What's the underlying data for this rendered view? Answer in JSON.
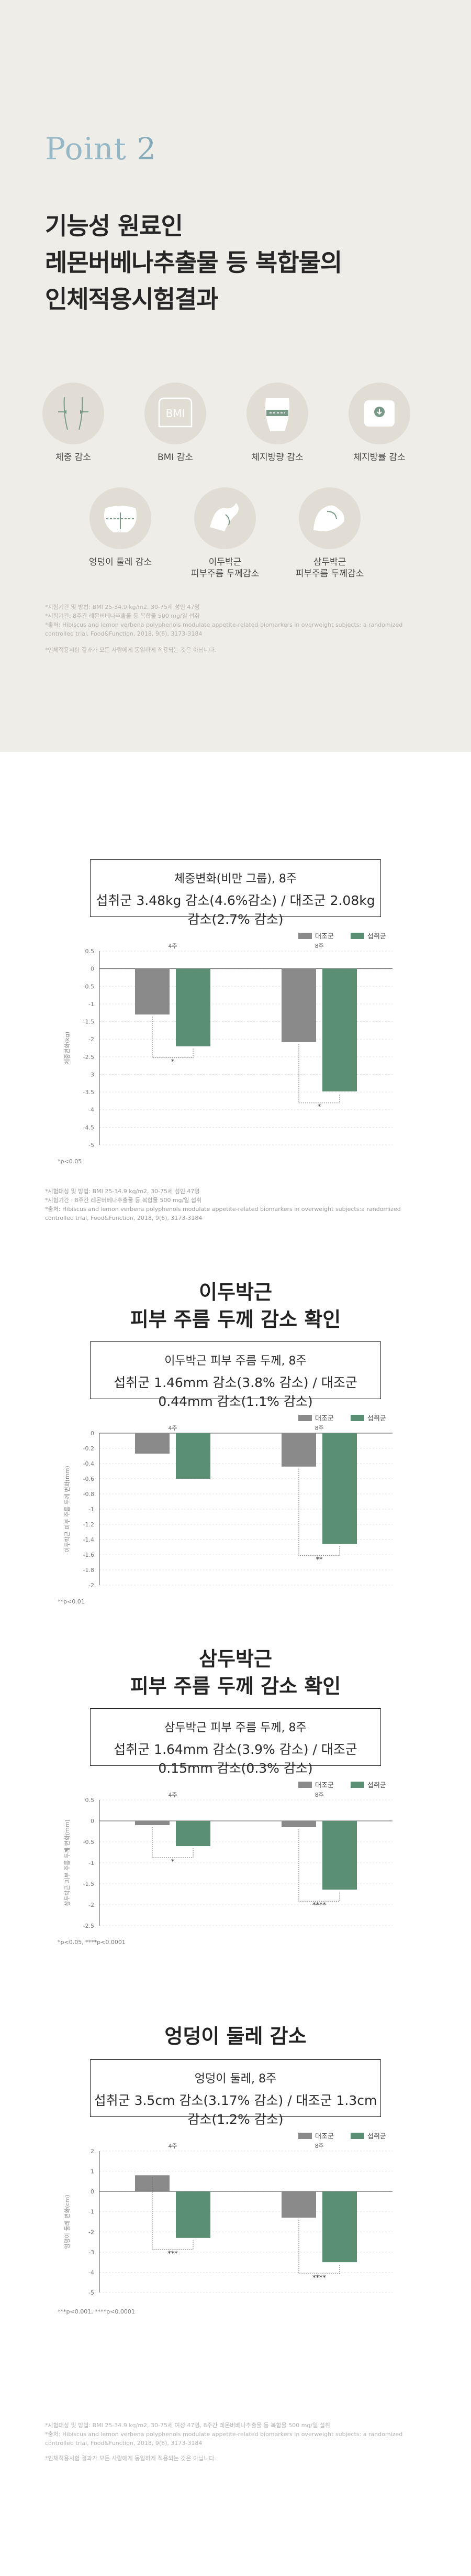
{
  "point": {
    "word": "Point",
    "num": "2"
  },
  "title_lines": [
    "기능성 원료인",
    "레몬버베나추출물 등 복합물의",
    "인체적용시험결과"
  ],
  "icons": [
    {
      "name": "weight-loss-icon",
      "label": "체중 감소"
    },
    {
      "name": "bmi-icon",
      "label": "BMI 감소"
    },
    {
      "name": "body-fat-icon",
      "label": "체지방량 감소"
    },
    {
      "name": "fat-mass-icon",
      "label": "체지방률 감소"
    },
    {
      "name": "hip-icon",
      "label": "엉덩이 둘레 감소"
    },
    {
      "name": "triceps-icon",
      "label": "이두박근\n피부주름 두께감소"
    },
    {
      "name": "biceps-icon",
      "label": "삼두박근\n피부주름 두께감소"
    }
  ],
  "footnotes": [
    "*시험기관 및 방법: BMI 25-34.9 kg/m2, 30-75세 성인 47명",
    "*시험기간: 8주간 레몬버베나추출물 등 복합물 500 mg/일 섭취",
    "*출처: Hibiscus and lemon verbena polyphenols modulate appetite-related biomarkers in overweight subjects: a randomized controlled trial, Food&Function, 2018, 9(6), 3173-3184",
    "*인체적용시험 결과가 모든 사람에게 동일하게 적용되는 것은 아닙니다."
  ],
  "chart1": {
    "heading": "체중변화(비만 그룹), 8주",
    "summary": "섭취군 3.48kg 감소(4.6%감소) / 대조군 2.08kg 감소(2.7% 감소)",
    "legend": [
      "대조군",
      "섭취군"
    ],
    "ylabel": "체중변화(kg)",
    "note": "*p<0.05"
  },
  "chart1_ref": [
    "*시험대상 및 방법: BMI 25-34.9 kg/m2, 30-75세 성인 47명",
    "*시험기간 : 8주간 레몬버베나추출물 등 복합물 500 mg/일 섭취",
    "*출처: Hibiscus and lemon verbena polyphenols modulate appetite-related biomarkers in overweight subjects:a randomized controlled trial, Food&Function, 2018, 9(6), 3173-3184"
  ],
  "chart2": {
    "title": [
      "이두박근",
      "피부 주름 두께 감소 확인"
    ],
    "heading": "이두박근 피부 주름 두께, 8주",
    "summary": "섭취군 1.46mm 감소(3.8% 감소) / 대조군 0.44mm 감소(1.1% 감소)",
    "legend": [
      "대조군",
      "섭취군"
    ],
    "ylabel": "이두박근 피부 주름 두께 변화(mm)",
    "note": "**p<0.01"
  },
  "chart3": {
    "title": [
      "삼두박근",
      "피부 주름 두께 감소 확인"
    ],
    "heading": "삼두박근 피부 주름 두께, 8주",
    "summary": "섭취군 1.64mm 감소(3.9% 감소) / 대조군 0.15mm 감소(0.3% 감소)",
    "legend": [
      "대조군",
      "섭취군"
    ],
    "ylabel": "삼두박근 피부 주름 두께 변화(mm)",
    "note": "*p<0.05, ****p<0.0001"
  },
  "chart4": {
    "title": [
      "엉덩이 둘레 감소"
    ],
    "heading": "엉덩이 둘레, 8주",
    "summary": "섭취군 3.5cm 감소(3.17% 감소) / 대조군 1.3cm 감소(1.2% 감소)",
    "legend": [
      "대조군",
      "섭취군"
    ],
    "ylabel": "엉덩이 둘레 변화(cm)",
    "note": "***p<0.001, ****p<0.0001"
  },
  "bottom_ref": [
    "*시험대상 및 방법: BMI 25-34.9 kg/m2, 30-75세 여성 47명, 8주간 레몬버베나추출물 등 복합물 500 mg/일 섭취",
    "*출처: Hibiscus and lemon verbena polyphenols modulate appetite-related biomarkers in overweight subjects: a randomized controlled trial, Food&Function, 2018, 9(6), 3173-3184",
    "*인체적용시험 결과가 모든 사람에게 동일하게 적용되는 것은 아닙니다."
  ],
  "colors": {
    "control": "#8a8a8a",
    "treatment": "#5b8f74",
    "top_bg": "#efede8",
    "point": "#96b8c6"
  },
  "chart_data": [
    {
      "type": "bar",
      "categories": [
        "4주",
        "8주"
      ],
      "series": [
        {
          "name": "대조군",
          "values": [
            -1.3,
            -2.08
          ]
        },
        {
          "name": "섭취군",
          "values": [
            -2.2,
            -3.48
          ]
        }
      ],
      "ylim": [
        -5,
        0.5
      ],
      "yticks": [
        "0.5",
        "0",
        "-0.5",
        "-1",
        "-1.5",
        "-2",
        "-2.5",
        "-3",
        "-3.5",
        "-4",
        "-4.5",
        "-5"
      ],
      "sig": [
        "*",
        "*"
      ]
    },
    {
      "type": "bar",
      "categories": [
        "4주",
        "8주"
      ],
      "series": [
        {
          "name": "대조군",
          "values": [
            -0.27,
            -0.44
          ]
        },
        {
          "name": "섭취군",
          "values": [
            -0.6,
            -1.46
          ]
        }
      ],
      "ylim": [
        -2,
        0
      ],
      "yticks": [
        "0",
        "-0.2",
        "-0.4",
        "-0.6",
        "-0.8",
        "-1",
        "-1.2",
        "-1.4",
        "-1.6",
        "-1.8",
        "-2"
      ],
      "sig": [
        "",
        "**"
      ]
    },
    {
      "type": "bar",
      "categories": [
        "4주",
        "8주"
      ],
      "series": [
        {
          "name": "대조군",
          "values": [
            -0.1,
            -0.15
          ]
        },
        {
          "name": "섭취군",
          "values": [
            -0.6,
            -1.64
          ]
        }
      ],
      "ylim": [
        -2.5,
        0.5
      ],
      "yticks": [
        "0.5",
        "0",
        "-0.5",
        "-1",
        "-1.5",
        "-2",
        "-2.5"
      ],
      "sig": [
        "*",
        "****"
      ]
    },
    {
      "type": "bar",
      "categories": [
        "4주",
        "8주"
      ],
      "series": [
        {
          "name": "대조군",
          "values": [
            0.8,
            -1.3
          ]
        },
        {
          "name": "섭취군",
          "values": [
            -2.3,
            -3.5
          ]
        }
      ],
      "ylim": [
        -5,
        2
      ],
      "yticks": [
        "2",
        "1",
        "0",
        "-1",
        "-2",
        "-3",
        "-4",
        "-5"
      ],
      "sig": [
        "***",
        "****"
      ]
    }
  ]
}
